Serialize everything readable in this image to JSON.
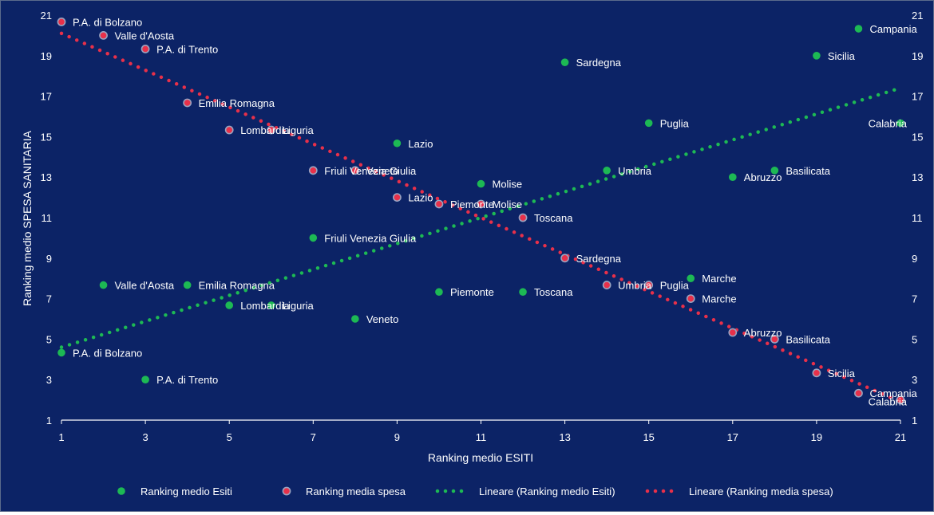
{
  "chart_data": {
    "type": "scatter",
    "xlabel": "Ranking medio ESITI",
    "ylabel": "Ranking medio SPESA SANITARIA",
    "xlim": [
      1,
      21
    ],
    "ylim": [
      1,
      21
    ],
    "xticks": [
      1,
      3,
      5,
      7,
      9,
      11,
      13,
      15,
      17,
      19,
      21
    ],
    "yticks": [
      1,
      3,
      5,
      7,
      9,
      11,
      13,
      15,
      17,
      19,
      21
    ],
    "grid": false,
    "secondary_y_axis": true,
    "legend_position": "bottom",
    "colors": {
      "background": "#0c2366",
      "esiti": "#1db954",
      "spesa": "#e8304a",
      "spesa_border": "#9aa3c0",
      "axis": "#ffffff"
    },
    "series": [
      {
        "name": "Ranking medio Esiti",
        "color": "#1db954",
        "points": [
          {
            "label": "P.A. di Bolzano",
            "x": 1,
            "y": 4.33
          },
          {
            "label": "Valle d'Aosta",
            "x": 2,
            "y": 7.67
          },
          {
            "label": "P.A. di Trento",
            "x": 3,
            "y": 3.0
          },
          {
            "label": "Emilia Romagna",
            "x": 4,
            "y": 7.67
          },
          {
            "label": "Lombardia",
            "x": 5,
            "y": 6.67
          },
          {
            "label": "Liguria",
            "x": 6,
            "y": 6.67
          },
          {
            "label": "Friuli Venezia Giulia",
            "x": 7,
            "y": 10.0
          },
          {
            "label": "Veneto",
            "x": 8,
            "y": 6.0
          },
          {
            "label": "Lazio",
            "x": 9,
            "y": 14.67
          },
          {
            "label": "Piemonte",
            "x": 10,
            "y": 7.33
          },
          {
            "label": "Molise",
            "x": 11,
            "y": 12.67
          },
          {
            "label": "Toscana",
            "x": 12,
            "y": 7.33
          },
          {
            "label": "Sardegna",
            "x": 13,
            "y": 18.67
          },
          {
            "label": "Umbria",
            "x": 14,
            "y": 13.33
          },
          {
            "label": "Puglia",
            "x": 15,
            "y": 15.67
          },
          {
            "label": "Marche",
            "x": 16,
            "y": 8.0
          },
          {
            "label": "Abruzzo",
            "x": 17,
            "y": 13.0
          },
          {
            "label": "Basilicata",
            "x": 18,
            "y": 13.33
          },
          {
            "label": "Sicilia",
            "x": 19,
            "y": 19.0
          },
          {
            "label": "Campania",
            "x": 20,
            "y": 20.33
          },
          {
            "label": "Calabria",
            "x": 21,
            "y": 15.67
          }
        ]
      },
      {
        "name": "Ranking media spesa",
        "color": "#e8304a",
        "points": [
          {
            "label": "P.A. di Bolzano",
            "x": 1,
            "y": 20.67
          },
          {
            "label": "Valle d'Aosta",
            "x": 2,
            "y": 20.0
          },
          {
            "label": "P.A. di Trento",
            "x": 3,
            "y": 19.33
          },
          {
            "label": "Emilia Romagna",
            "x": 4,
            "y": 16.67
          },
          {
            "label": "Lombardia",
            "x": 5,
            "y": 15.33
          },
          {
            "label": "Liguria",
            "x": 6,
            "y": 15.33
          },
          {
            "label": "Friuli Venezia Giulia",
            "x": 7,
            "y": 13.33
          },
          {
            "label": "Veneto",
            "x": 8,
            "y": 13.33
          },
          {
            "label": "Lazio",
            "x": 9,
            "y": 12.0
          },
          {
            "label": "Piemonte",
            "x": 10,
            "y": 11.67
          },
          {
            "label": "Molise",
            "x": 11,
            "y": 11.67
          },
          {
            "label": "Toscana",
            "x": 12,
            "y": 11.0
          },
          {
            "label": "Sardegna",
            "x": 13,
            "y": 9.0
          },
          {
            "label": "Umbria",
            "x": 14,
            "y": 7.67
          },
          {
            "label": "Puglia",
            "x": 15,
            "y": 7.67
          },
          {
            "label": "Marche",
            "x": 16,
            "y": 7.0
          },
          {
            "label": "Abruzzo",
            "x": 17,
            "y": 5.33
          },
          {
            "label": "Basilicata",
            "x": 18,
            "y": 5.0
          },
          {
            "label": "Sicilia",
            "x": 19,
            "y": 3.33
          },
          {
            "label": "Campania",
            "x": 20,
            "y": 2.33
          },
          {
            "label": "Calabria",
            "x": 21,
            "y": 2.0
          }
        ]
      }
    ],
    "trendlines": [
      {
        "name": "Lineare (Ranking medio Esiti)",
        "of": "Ranking medio Esiti",
        "color": "#1db954",
        "from": [
          1,
          4.6
        ],
        "to": [
          21,
          17.4
        ]
      },
      {
        "name": "Lineare (Ranking media spesa)",
        "of": "Ranking media spesa",
        "color": "#e8304a",
        "from": [
          1,
          20.1
        ],
        "to": [
          21,
          1.9
        ]
      }
    ],
    "legend": [
      "Ranking medio Esiti",
      "Ranking media spesa",
      "Lineare (Ranking medio Esiti)",
      "Lineare (Ranking media spesa)"
    ]
  }
}
